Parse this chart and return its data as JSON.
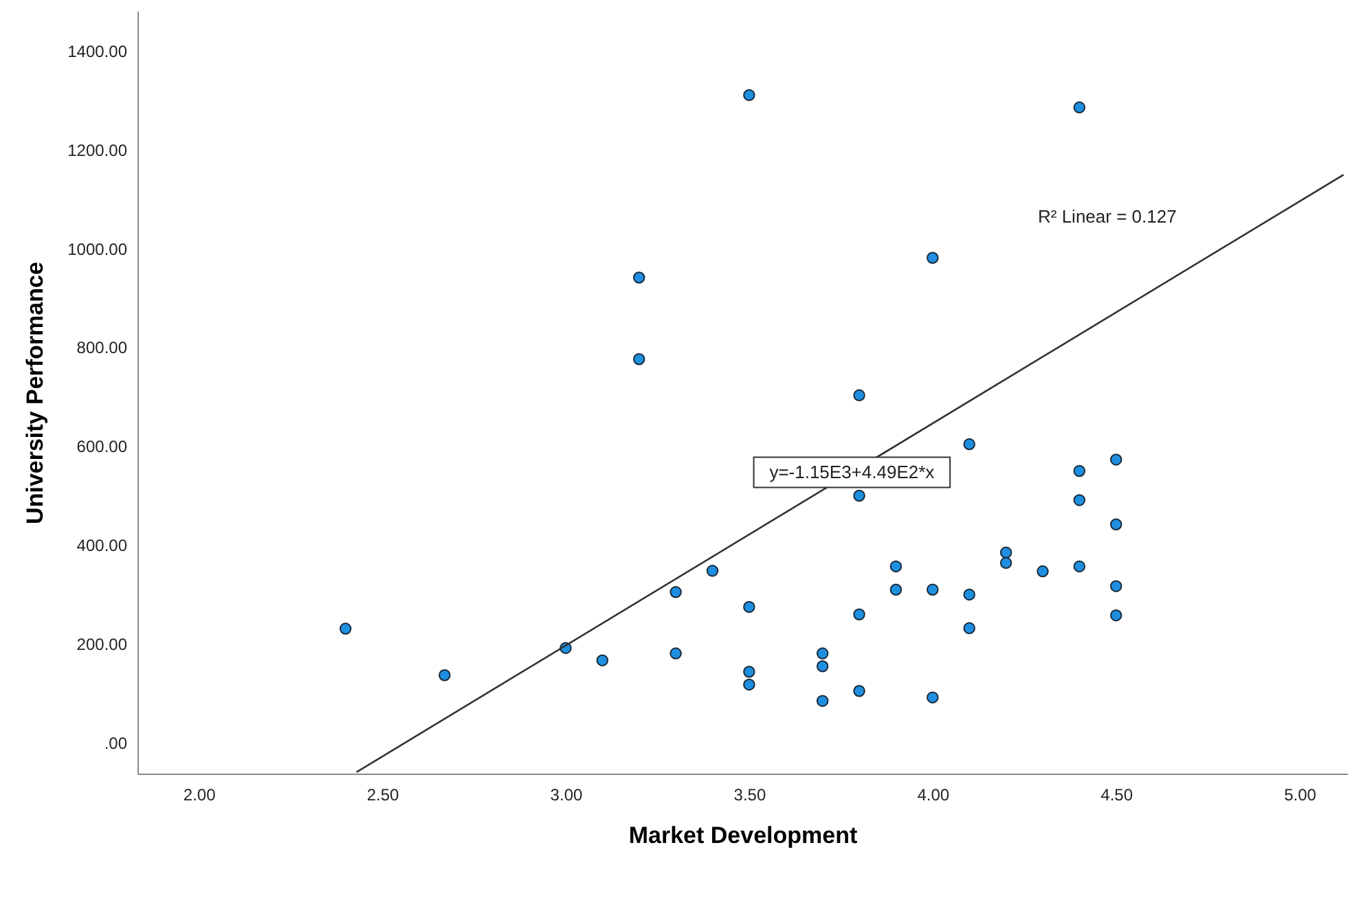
{
  "chart_data": {
    "type": "scatter",
    "xlabel": "Market Development",
    "ylabel": "University Performance",
    "xlim": [
      1.833,
      5.13
    ],
    "ylim": [
      -62,
      1480
    ],
    "xticks": [
      {
        "value": 2,
        "label": "2.00"
      },
      {
        "value": 2.5,
        "label": "2.50"
      },
      {
        "value": 3,
        "label": "3.00"
      },
      {
        "value": 3.5,
        "label": "3.50"
      },
      {
        "value": 4,
        "label": "4.00"
      },
      {
        "value": 4.5,
        "label": "4.50"
      },
      {
        "value": 5,
        "label": "5.00"
      }
    ],
    "yticks": [
      {
        "value": 0,
        "label": ".00"
      },
      {
        "value": 200,
        "label": "200.00"
      },
      {
        "value": 400,
        "label": "400.00"
      },
      {
        "value": 600,
        "label": "600.00"
      },
      {
        "value": 800,
        "label": "800.00"
      },
      {
        "value": 1000,
        "label": "1000.00"
      },
      {
        "value": 1200,
        "label": "1200.00"
      },
      {
        "value": 1400,
        "label": "1400.00"
      }
    ],
    "grid": false,
    "series": [
      {
        "marker": "circle",
        "color": "#1e8fe0",
        "x": [
          2.4,
          2.67,
          3.0,
          3.1,
          3.2,
          3.2,
          3.3,
          3.3,
          3.4,
          3.5,
          3.5,
          3.5,
          3.5,
          3.7,
          3.7,
          3.7,
          3.8,
          3.8,
          3.8,
          3.8,
          3.9,
          3.9,
          4.0,
          4.0,
          4.0,
          4.1,
          4.1,
          4.1,
          4.2,
          4.2,
          4.3,
          4.4,
          4.4,
          4.4,
          4.4,
          4.5,
          4.5,
          4.5,
          4.5
        ],
        "values": [
          231,
          137,
          192,
          167,
          941,
          776,
          181,
          305,
          348,
          1310,
          275,
          144,
          118,
          181,
          155,
          85,
          703,
          500,
          260,
          105,
          357,
          310,
          981,
          310,
          92,
          604,
          300,
          232,
          385,
          364,
          347,
          1285,
          550,
          491,
          357,
          573,
          442,
          317,
          258
        ]
      },
      {
        "type": "line",
        "color": "#333333",
        "line_style": "solid",
        "x": [
          2.43,
          5.12
        ],
        "values": [
          -59,
          1149
        ]
      }
    ],
    "annotations": [
      "R² Linear = 0.127",
      {
        "text": "y=-1.15E3+4.49E2*x",
        "x": 3.78,
        "y": 547
      }
    ]
  }
}
